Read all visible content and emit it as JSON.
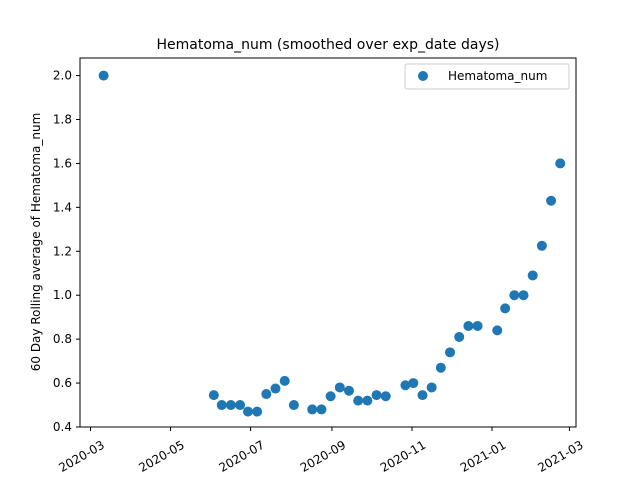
{
  "chart_data": {
    "type": "scatter",
    "title": "Hematoma_num (smoothed over exp_date days)",
    "xlabel": "",
    "ylabel": "60 Day Rolling average of Hematoma_num",
    "color": "#1f77b4",
    "xlim": [
      "2020-02-22",
      "2021-03-06"
    ],
    "ylim": [
      0.4,
      2.08
    ],
    "legend": {
      "position": "top-right",
      "entries": [
        "Hematoma_num"
      ]
    },
    "grid": false,
    "x_ticks": [
      "2020-03-01",
      "2020-05-01",
      "2020-07-01",
      "2020-09-01",
      "2020-11-01",
      "2021-01-01",
      "2021-03-01"
    ],
    "x_tick_labels": [
      "2020-03",
      "2020-05",
      "2020-07",
      "2020-09",
      "2020-11",
      "2021-01",
      "2021-03"
    ],
    "y_ticks": [
      0.4,
      0.6,
      0.8,
      1.0,
      1.2,
      1.4,
      1.6,
      1.8,
      2.0
    ],
    "y_tick_labels": [
      "0.4",
      "0.6",
      "0.8",
      "1.0",
      "1.2",
      "1.4",
      "1.6",
      "1.8",
      "2.0"
    ],
    "series": [
      {
        "name": "Hematoma_num",
        "points": [
          {
            "x": "2020-03-11",
            "y": 2.0
          },
          {
            "x": "2020-06-03",
            "y": 0.545
          },
          {
            "x": "2020-06-09",
            "y": 0.5
          },
          {
            "x": "2020-06-16",
            "y": 0.5
          },
          {
            "x": "2020-06-23",
            "y": 0.5
          },
          {
            "x": "2020-06-29",
            "y": 0.47
          },
          {
            "x": "2020-07-06",
            "y": 0.47
          },
          {
            "x": "2020-07-13",
            "y": 0.55
          },
          {
            "x": "2020-07-20",
            "y": 0.575
          },
          {
            "x": "2020-07-27",
            "y": 0.61
          },
          {
            "x": "2020-08-03",
            "y": 0.5
          },
          {
            "x": "2020-08-17",
            "y": 0.48
          },
          {
            "x": "2020-08-24",
            "y": 0.48
          },
          {
            "x": "2020-08-31",
            "y": 0.54
          },
          {
            "x": "2020-09-07",
            "y": 0.58
          },
          {
            "x": "2020-09-14",
            "y": 0.565
          },
          {
            "x": "2020-09-21",
            "y": 0.52
          },
          {
            "x": "2020-09-28",
            "y": 0.52
          },
          {
            "x": "2020-10-05",
            "y": 0.545
          },
          {
            "x": "2020-10-12",
            "y": 0.54
          },
          {
            "x": "2020-10-27",
            "y": 0.59
          },
          {
            "x": "2020-11-02",
            "y": 0.6
          },
          {
            "x": "2020-11-09",
            "y": 0.545
          },
          {
            "x": "2020-11-16",
            "y": 0.58
          },
          {
            "x": "2020-11-23",
            "y": 0.67
          },
          {
            "x": "2020-11-30",
            "y": 0.74
          },
          {
            "x": "2020-12-07",
            "y": 0.81
          },
          {
            "x": "2020-12-14",
            "y": 0.86
          },
          {
            "x": "2020-12-21",
            "y": 0.86
          },
          {
            "x": "2021-01-05",
            "y": 0.84
          },
          {
            "x": "2021-01-11",
            "y": 0.94
          },
          {
            "x": "2021-01-18",
            "y": 1.0
          },
          {
            "x": "2021-01-25",
            "y": 1.0
          },
          {
            "x": "2021-02-01",
            "y": 1.09
          },
          {
            "x": "2021-02-08",
            "y": 1.225
          },
          {
            "x": "2021-02-15",
            "y": 1.43
          },
          {
            "x": "2021-02-22",
            "y": 1.6
          }
        ]
      }
    ]
  }
}
